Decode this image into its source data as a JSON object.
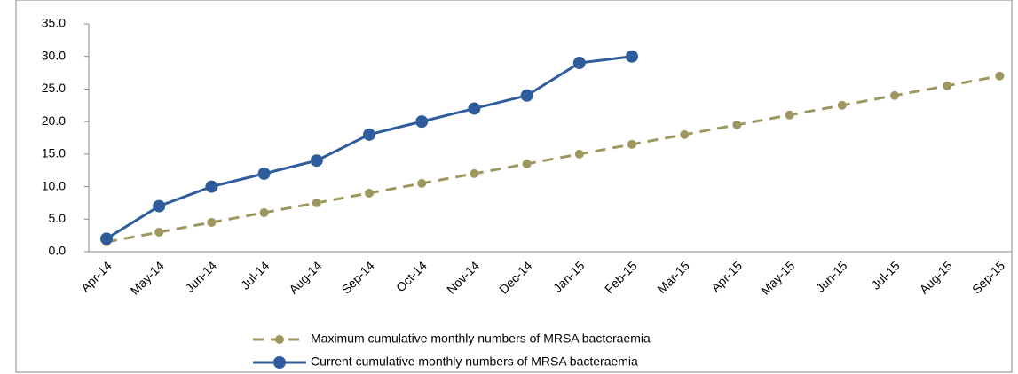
{
  "chart_data": {
    "type": "line",
    "categories": [
      "Apr-14",
      "May-14",
      "Jun-14",
      "Jul-14",
      "Aug-14",
      "Sep-14",
      "Oct-14",
      "Nov-14",
      "Dec-14",
      "Jan-15",
      "Feb-15",
      "Mar-15",
      "Apr-15",
      "May-15",
      "Jun-15",
      "Jul-15",
      "Aug-15",
      "Sep-15"
    ],
    "series": [
      {
        "name": "Maximum cumulative monthly numbers of MRSA bacteraemia",
        "color": "#9e9860",
        "dashed": true,
        "values": [
          1.5,
          3,
          4.5,
          6,
          7.5,
          9,
          10.5,
          12,
          13.5,
          15,
          16.5,
          18,
          19.5,
          21,
          22.5,
          24,
          25.5,
          27
        ]
      },
      {
        "name": "Current cumulative monthly numbers of MRSA bacteraemia",
        "color": "#2e5c9c",
        "dashed": false,
        "values": [
          2,
          7,
          10,
          12,
          14,
          18,
          20,
          22,
          24,
          29,
          30,
          null,
          null,
          null,
          null,
          null,
          null,
          null
        ]
      }
    ],
    "ylim": [
      0,
      35
    ],
    "yticks": [
      {
        "value": 0,
        "label": "0.0"
      },
      {
        "value": 5,
        "label": "5.0"
      },
      {
        "value": 10,
        "label": "10.0"
      },
      {
        "value": 15,
        "label": "15.0"
      },
      {
        "value": 20,
        "label": "20.0"
      },
      {
        "value": 25,
        "label": "25.0"
      },
      {
        "value": 30,
        "label": "30.0"
      },
      {
        "value": 35,
        "label": "35.0"
      }
    ],
    "grid": false
  }
}
